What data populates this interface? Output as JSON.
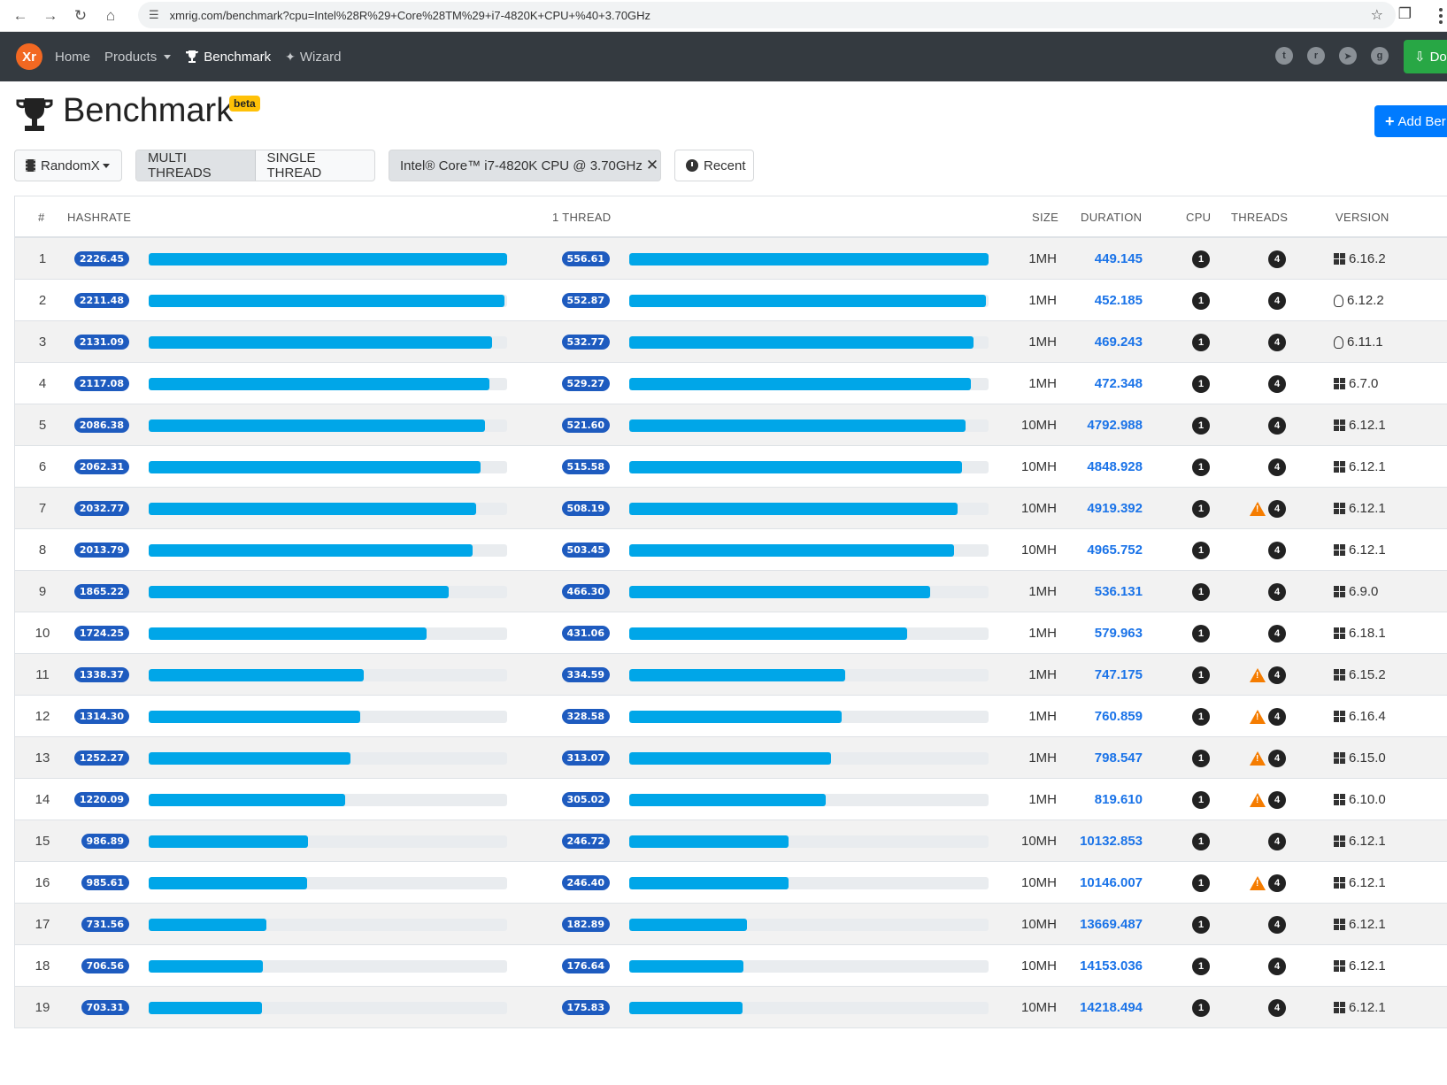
{
  "browser": {
    "url": "xmrig.com/benchmark?cpu=Intel%28R%29+Core%28TM%29+i7-4820K+CPU+%40+3.70GHz",
    "icons": [
      "back-icon",
      "forward-icon",
      "reload-icon",
      "home-icon",
      "site-settings-icon",
      "bookmark-star-icon",
      "extensions-icon",
      "menu-kebab-icon"
    ]
  },
  "navbar": {
    "logo_text": "Xr",
    "links": [
      "Home",
      "Products",
      "Benchmark",
      "Wizard"
    ],
    "social_icons": [
      "twitter-icon",
      "reddit-icon",
      "telegram-icon",
      "github-icon"
    ],
    "download_label": "Do"
  },
  "header": {
    "title": "Benchmark",
    "badge": "beta",
    "add_button": "Add Ber"
  },
  "toolbar": {
    "algo": "RandomX",
    "multi_threads": "MULTI THREADS",
    "single_thread": "SINGLE THREAD",
    "cpu_filter": "Intel® Core™ i7-4820K CPU @ 3.70GHz",
    "recent": "Recent"
  },
  "table": {
    "headers": {
      "num": "#",
      "hashrate": "HASHRATE",
      "one_thread": "1 THREAD",
      "size": "SIZE",
      "duration": "DURATION",
      "cpu": "CPU",
      "threads": "THREADS",
      "version": "VERSION"
    },
    "max_hashrate": 2226.45,
    "max_thread": 556.61,
    "rows": [
      {
        "n": "1",
        "hr": "2226.45",
        "t1": "556.61",
        "size": "1MH",
        "dur": "449.145",
        "cpu": "1",
        "thr": "4",
        "warn": false,
        "os": "windows",
        "ver": "6.16.2"
      },
      {
        "n": "2",
        "hr": "2211.48",
        "t1": "552.87",
        "size": "1MH",
        "dur": "452.185",
        "cpu": "1",
        "thr": "4",
        "warn": false,
        "os": "linux",
        "ver": "6.12.2"
      },
      {
        "n": "3",
        "hr": "2131.09",
        "t1": "532.77",
        "size": "1MH",
        "dur": "469.243",
        "cpu": "1",
        "thr": "4",
        "warn": false,
        "os": "linux",
        "ver": "6.11.1"
      },
      {
        "n": "4",
        "hr": "2117.08",
        "t1": "529.27",
        "size": "1MH",
        "dur": "472.348",
        "cpu": "1",
        "thr": "4",
        "warn": false,
        "os": "windows",
        "ver": "6.7.0"
      },
      {
        "n": "5",
        "hr": "2086.38",
        "t1": "521.60",
        "size": "10MH",
        "dur": "4792.988",
        "cpu": "1",
        "thr": "4",
        "warn": false,
        "os": "windows",
        "ver": "6.12.1"
      },
      {
        "n": "6",
        "hr": "2062.31",
        "t1": "515.58",
        "size": "10MH",
        "dur": "4848.928",
        "cpu": "1",
        "thr": "4",
        "warn": false,
        "os": "windows",
        "ver": "6.12.1"
      },
      {
        "n": "7",
        "hr": "2032.77",
        "t1": "508.19",
        "size": "10MH",
        "dur": "4919.392",
        "cpu": "1",
        "thr": "4",
        "warn": true,
        "os": "windows",
        "ver": "6.12.1"
      },
      {
        "n": "8",
        "hr": "2013.79",
        "t1": "503.45",
        "size": "10MH",
        "dur": "4965.752",
        "cpu": "1",
        "thr": "4",
        "warn": false,
        "os": "windows",
        "ver": "6.12.1"
      },
      {
        "n": "9",
        "hr": "1865.22",
        "t1": "466.30",
        "size": "1MH",
        "dur": "536.131",
        "cpu": "1",
        "thr": "4",
        "warn": false,
        "os": "windows",
        "ver": "6.9.0"
      },
      {
        "n": "10",
        "hr": "1724.25",
        "t1": "431.06",
        "size": "1MH",
        "dur": "579.963",
        "cpu": "1",
        "thr": "4",
        "warn": false,
        "os": "windows",
        "ver": "6.18.1"
      },
      {
        "n": "11",
        "hr": "1338.37",
        "t1": "334.59",
        "size": "1MH",
        "dur": "747.175",
        "cpu": "1",
        "thr": "4",
        "warn": true,
        "os": "windows",
        "ver": "6.15.2"
      },
      {
        "n": "12",
        "hr": "1314.30",
        "t1": "328.58",
        "size": "1MH",
        "dur": "760.859",
        "cpu": "1",
        "thr": "4",
        "warn": true,
        "os": "windows",
        "ver": "6.16.4"
      },
      {
        "n": "13",
        "hr": "1252.27",
        "t1": "313.07",
        "size": "1MH",
        "dur": "798.547",
        "cpu": "1",
        "thr": "4",
        "warn": true,
        "os": "windows",
        "ver": "6.15.0"
      },
      {
        "n": "14",
        "hr": "1220.09",
        "t1": "305.02",
        "size": "1MH",
        "dur": "819.610",
        "cpu": "1",
        "thr": "4",
        "warn": true,
        "os": "windows",
        "ver": "6.10.0"
      },
      {
        "n": "15",
        "hr": "986.89",
        "t1": "246.72",
        "size": "10MH",
        "dur": "10132.853",
        "cpu": "1",
        "thr": "4",
        "warn": false,
        "os": "windows",
        "ver": "6.12.1"
      },
      {
        "n": "16",
        "hr": "985.61",
        "t1": "246.40",
        "size": "10MH",
        "dur": "10146.007",
        "cpu": "1",
        "thr": "4",
        "warn": true,
        "os": "windows",
        "ver": "6.12.1"
      },
      {
        "n": "17",
        "hr": "731.56",
        "t1": "182.89",
        "size": "10MH",
        "dur": "13669.487",
        "cpu": "1",
        "thr": "4",
        "warn": false,
        "os": "windows",
        "ver": "6.12.1"
      },
      {
        "n": "18",
        "hr": "706.56",
        "t1": "176.64",
        "size": "10MH",
        "dur": "14153.036",
        "cpu": "1",
        "thr": "4",
        "warn": false,
        "os": "windows",
        "ver": "6.12.1"
      },
      {
        "n": "19",
        "hr": "703.31",
        "t1": "175.83",
        "size": "10MH",
        "dur": "14218.494",
        "cpu": "1",
        "thr": "4",
        "warn": false,
        "os": "windows",
        "ver": "6.12.1"
      }
    ]
  },
  "colors": {
    "navbar_bg": "#343a40",
    "bar_fill": "#00a6e8",
    "badge_bg": "#1e5bbf",
    "duration_link": "#1a73e8",
    "warning": "#f57c00",
    "download_btn": "#28a745",
    "add_btn": "#007bff",
    "beta_badge": "#ffc107"
  }
}
